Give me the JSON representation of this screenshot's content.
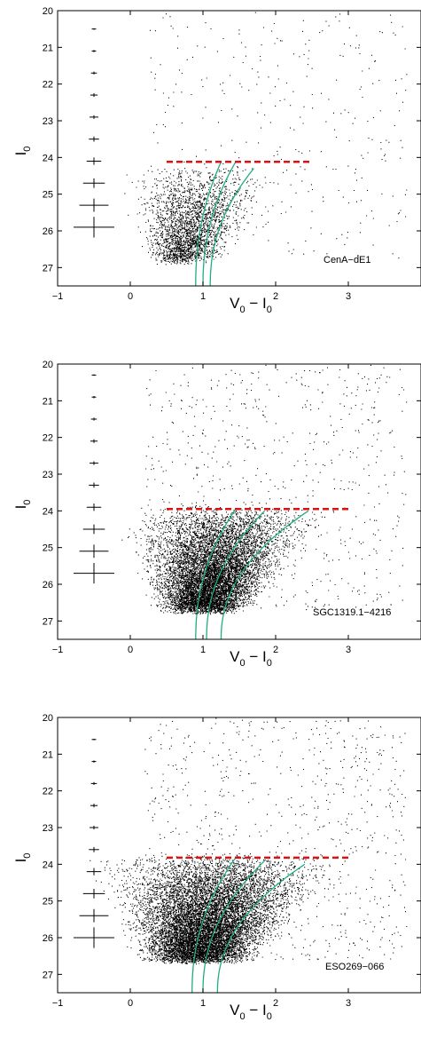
{
  "chart_data": [
    {
      "type": "scatter",
      "title": "",
      "label": "CenA−dE1",
      "xlabel": {
        "main": "V",
        "sub1": "0",
        "mid": " − I",
        "sub2": "0"
      },
      "ylabel": {
        "main": "I",
        "sub": "0"
      },
      "xlim": [
        -1,
        4
      ],
      "ylim": [
        27.5,
        20
      ],
      "xticks": [
        "−1",
        "0",
        "1",
        "2",
        "3"
      ],
      "xtick_values": [
        -1,
        0,
        1,
        2,
        3
      ],
      "yticks": [
        "20",
        "21",
        "22",
        "23",
        "24",
        "25",
        "26",
        "27"
      ],
      "ytick_values": [
        20,
        21,
        22,
        23,
        24,
        25,
        26,
        27
      ],
      "trgb": {
        "I": 24.12,
        "x_range": [
          0.5,
          2.5
        ]
      },
      "error_bars": [
        {
          "x": -0.5,
          "I": 20.5,
          "dx": 0.02,
          "dy": 0.02
        },
        {
          "x": -0.5,
          "I": 21.1,
          "dx": 0.03,
          "dy": 0.03
        },
        {
          "x": -0.5,
          "I": 21.7,
          "dx": 0.04,
          "dy": 0.04
        },
        {
          "x": -0.5,
          "I": 22.3,
          "dx": 0.05,
          "dy": 0.05
        },
        {
          "x": -0.5,
          "I": 22.9,
          "dx": 0.06,
          "dy": 0.05
        },
        {
          "x": -0.5,
          "I": 23.5,
          "dx": 0.07,
          "dy": 0.07
        },
        {
          "x": -0.5,
          "I": 24.1,
          "dx": 0.1,
          "dy": 0.1
        },
        {
          "x": -0.5,
          "I": 24.7,
          "dx": 0.15,
          "dy": 0.13
        },
        {
          "x": -0.5,
          "I": 25.3,
          "dx": 0.2,
          "dy": 0.18
        },
        {
          "x": -0.5,
          "I": 25.9,
          "dx": 0.28,
          "dy": 0.28
        }
      ],
      "isochrones": [
        {
          "tip_x": 1.25,
          "tip_I": 24.12,
          "bottom_x": 0.9
        },
        {
          "tip_x": 1.45,
          "tip_I": 24.12,
          "bottom_x": 1.0
        },
        {
          "tip_x": 1.7,
          "tip_I": 24.3,
          "bottom_x": 1.1
        }
      ],
      "density": {
        "rgb_count": 2600,
        "field_count": 350,
        "rgb_x_range": [
          0.2,
          1.7
        ],
        "rgb_top_I": 24.3,
        "bottom_I": 26.8
      }
    },
    {
      "type": "scatter",
      "title": "",
      "label": "SGC1319.1−4216",
      "xlabel": {
        "main": "V",
        "sub1": "0",
        "mid": " − I",
        "sub2": "0"
      },
      "ylabel": {
        "main": "I",
        "sub": "0"
      },
      "xlim": [
        -1,
        4
      ],
      "ylim": [
        27.5,
        20
      ],
      "xticks": [
        "−1",
        "0",
        "1",
        "2",
        "3"
      ],
      "xtick_values": [
        -1,
        0,
        1,
        2,
        3
      ],
      "yticks": [
        "20",
        "21",
        "22",
        "23",
        "24",
        "25",
        "26",
        "27"
      ],
      "ytick_values": [
        20,
        21,
        22,
        23,
        24,
        25,
        26,
        27
      ],
      "trgb": {
        "I": 23.95,
        "x_range": [
          0.5,
          3.0
        ]
      },
      "error_bars": [
        {
          "x": -0.5,
          "I": 20.3,
          "dx": 0.02,
          "dy": 0.02
        },
        {
          "x": -0.5,
          "I": 20.9,
          "dx": 0.03,
          "dy": 0.03
        },
        {
          "x": -0.5,
          "I": 21.5,
          "dx": 0.04,
          "dy": 0.04
        },
        {
          "x": -0.5,
          "I": 22.1,
          "dx": 0.05,
          "dy": 0.05
        },
        {
          "x": -0.5,
          "I": 22.7,
          "dx": 0.06,
          "dy": 0.05
        },
        {
          "x": -0.5,
          "I": 23.3,
          "dx": 0.07,
          "dy": 0.07
        },
        {
          "x": -0.5,
          "I": 23.9,
          "dx": 0.1,
          "dy": 0.1
        },
        {
          "x": -0.5,
          "I": 24.5,
          "dx": 0.15,
          "dy": 0.13
        },
        {
          "x": -0.5,
          "I": 25.1,
          "dx": 0.2,
          "dy": 0.18
        },
        {
          "x": -0.5,
          "I": 25.7,
          "dx": 0.28,
          "dy": 0.28
        }
      ],
      "isochrones": [
        {
          "tip_x": 1.45,
          "tip_I": 23.95,
          "bottom_x": 0.9
        },
        {
          "tip_x": 1.85,
          "tip_I": 24.0,
          "bottom_x": 1.05
        },
        {
          "tip_x": 2.45,
          "tip_I": 24.0,
          "bottom_x": 1.25
        }
      ],
      "density": {
        "rgb_count": 9000,
        "field_count": 700,
        "rgb_x_range": [
          0.3,
          2.2
        ],
        "rgb_top_I": 23.9,
        "bottom_I": 26.7
      }
    },
    {
      "type": "scatter",
      "title": "",
      "label": "ESO269−066",
      "xlabel": {
        "main": "V",
        "sub1": "0",
        "mid": " − I",
        "sub2": "0"
      },
      "ylabel": {
        "main": "I",
        "sub": "0"
      },
      "xlim": [
        -1,
        4
      ],
      "ylim": [
        27.5,
        20
      ],
      "xticks": [
        "−1",
        "0",
        "1",
        "2",
        "3"
      ],
      "xtick_values": [
        -1,
        0,
        1,
        2,
        3
      ],
      "yticks": [
        "20",
        "21",
        "22",
        "23",
        "24",
        "25",
        "26",
        "27"
      ],
      "ytick_values": [
        20,
        21,
        22,
        23,
        24,
        25,
        26,
        27
      ],
      "trgb": {
        "I": 23.82,
        "x_range": [
          0.5,
          3.0
        ]
      },
      "error_bars": [
        {
          "x": -0.5,
          "I": 20.6,
          "dx": 0.02,
          "dy": 0.02
        },
        {
          "x": -0.5,
          "I": 21.2,
          "dx": 0.03,
          "dy": 0.03
        },
        {
          "x": -0.5,
          "I": 21.8,
          "dx": 0.04,
          "dy": 0.04
        },
        {
          "x": -0.5,
          "I": 22.4,
          "dx": 0.05,
          "dy": 0.05
        },
        {
          "x": -0.5,
          "I": 23.0,
          "dx": 0.06,
          "dy": 0.05
        },
        {
          "x": -0.5,
          "I": 23.6,
          "dx": 0.07,
          "dy": 0.07
        },
        {
          "x": -0.5,
          "I": 24.2,
          "dx": 0.1,
          "dy": 0.1
        },
        {
          "x": -0.5,
          "I": 24.8,
          "dx": 0.15,
          "dy": 0.13
        },
        {
          "x": -0.5,
          "I": 25.4,
          "dx": 0.2,
          "dy": 0.18
        },
        {
          "x": -0.5,
          "I": 26.0,
          "dx": 0.28,
          "dy": 0.28
        }
      ],
      "isochrones": [
        {
          "tip_x": 1.45,
          "tip_I": 23.82,
          "bottom_x": 0.85
        },
        {
          "tip_x": 1.85,
          "tip_I": 23.9,
          "bottom_x": 1.0
        },
        {
          "tip_x": 2.4,
          "tip_I": 24.0,
          "bottom_x": 1.2
        }
      ],
      "density": {
        "rgb_count": 11000,
        "field_count": 800,
        "rgb_x_range": [
          0.0,
          2.3
        ],
        "rgb_top_I": 23.75,
        "bottom_I": 26.6
      }
    }
  ],
  "colors": {
    "points": "#000000",
    "trgb_line": "#dd1111",
    "isochrone": "#1fae84",
    "axes": "#000000"
  }
}
